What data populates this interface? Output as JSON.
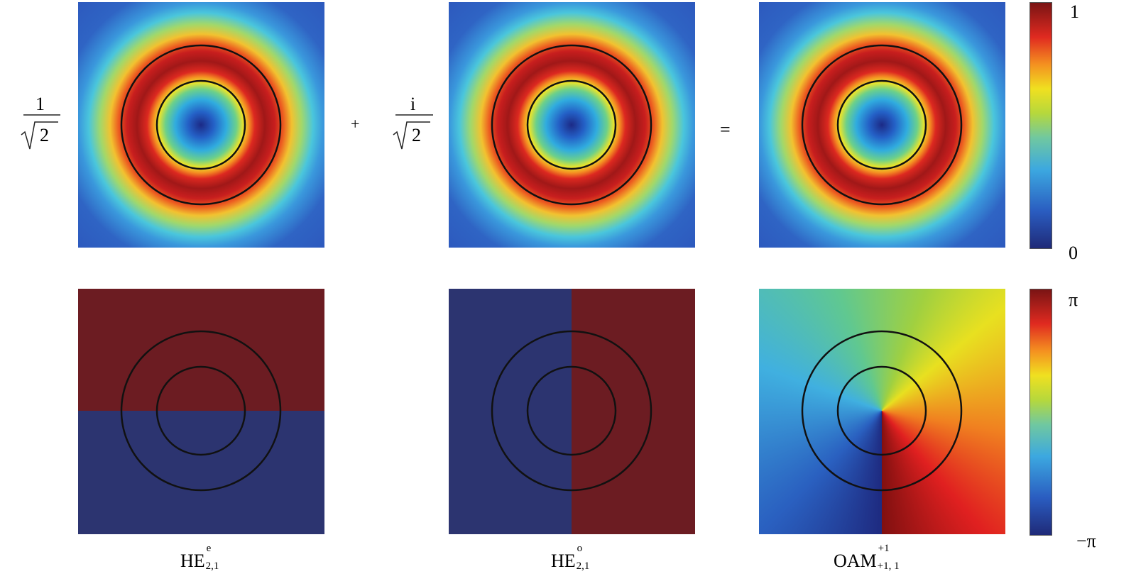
{
  "equation": {
    "term1": {
      "numerator": "1",
      "radicand": "2"
    },
    "plus": "+",
    "term2": {
      "numerator": "i",
      "radicand": "2"
    },
    "equals": "="
  },
  "colorbars": [
    {
      "max": "1",
      "min": "0"
    },
    {
      "max": "π",
      "min": "−π"
    }
  ],
  "labels": [
    {
      "base": "HE",
      "superscript": "e",
      "subscript": "2,1"
    },
    {
      "base": "HE",
      "superscript": "o",
      "subscript": "2,1"
    },
    {
      "base": "OAM",
      "superscript": "+1",
      "subscript": "+1, 1"
    }
  ]
}
